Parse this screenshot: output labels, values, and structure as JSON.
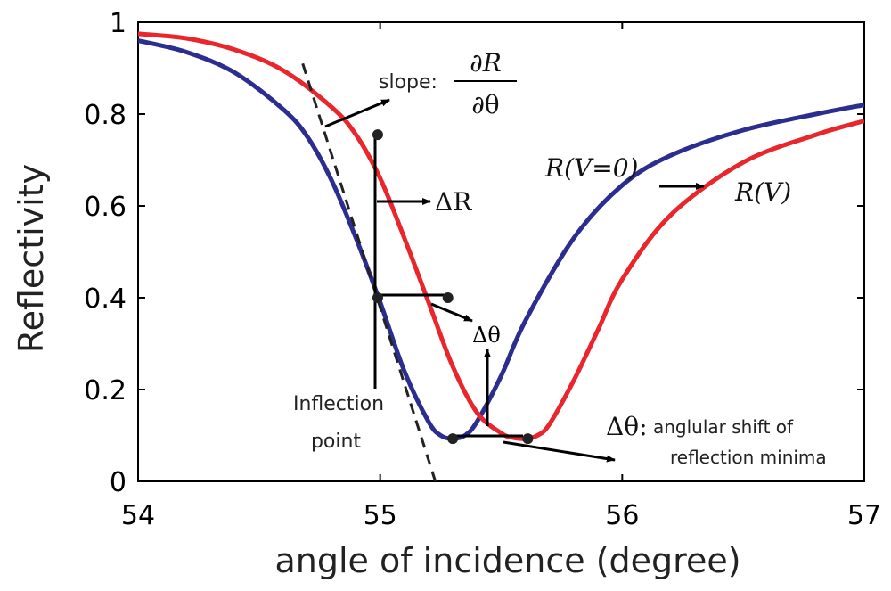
{
  "chart_data": {
    "type": "line",
    "title": "",
    "xlabel": "angle of incidence (degree)",
    "ylabel": "Reflectivity",
    "xlim": [
      54,
      57
    ],
    "ylim": [
      0,
      1
    ],
    "xticks": [
      54,
      55,
      56,
      57
    ],
    "xtick_labels": [
      "54",
      "55",
      "56",
      "57"
    ],
    "yticks": [
      0,
      0.2,
      0.4,
      0.6,
      0.8,
      1
    ],
    "ytick_labels": [
      "0",
      "0.2",
      "0.4",
      "0.6",
      "0.8",
      "1"
    ],
    "grid": false,
    "series": [
      {
        "name": "R(V=0)",
        "color": "#2b2d8f",
        "x": [
          54.0,
          54.2,
          54.4,
          54.6,
          54.7,
          54.8,
          54.9,
          55.0,
          55.1,
          55.2,
          55.25,
          55.3,
          55.35,
          55.4,
          55.5,
          55.6,
          55.8,
          56.0,
          56.2,
          56.5,
          56.8,
          57.0
        ],
        "y": [
          0.96,
          0.935,
          0.89,
          0.81,
          0.75,
          0.655,
          0.53,
          0.39,
          0.24,
          0.13,
          0.1,
          0.093,
          0.1,
          0.13,
          0.23,
          0.35,
          0.53,
          0.645,
          0.71,
          0.765,
          0.8,
          0.82
        ]
      },
      {
        "name": "R(V)",
        "color": "#e8262b",
        "x": [
          54.0,
          54.2,
          54.4,
          54.6,
          54.8,
          54.9,
          55.0,
          55.1,
          55.2,
          55.3,
          55.4,
          55.5,
          55.55,
          55.6,
          55.65,
          55.7,
          55.8,
          55.9,
          56.0,
          56.2,
          56.5,
          56.8,
          57.0
        ],
        "y": [
          0.975,
          0.965,
          0.94,
          0.895,
          0.815,
          0.755,
          0.66,
          0.53,
          0.39,
          0.25,
          0.15,
          0.105,
          0.095,
          0.093,
          0.1,
          0.125,
          0.22,
          0.33,
          0.44,
          0.58,
          0.695,
          0.755,
          0.785
        ]
      }
    ],
    "tangent_line": {
      "x": [
        54.68,
        55.24
      ],
      "y": [
        0.91,
        -0.02
      ]
    },
    "points": [
      {
        "name": "red-upper-point",
        "x": 54.99,
        "y": 0.755
      },
      {
        "name": "inflection-point",
        "x": 54.99,
        "y": 0.4
      },
      {
        "name": "red-same-level-point",
        "x": 55.28,
        "y": 0.4
      },
      {
        "name": "blue-minimum-point",
        "x": 55.3,
        "y": 0.093
      },
      {
        "name": "red-minimum-point",
        "x": 55.61,
        "y": 0.093
      }
    ],
    "annotations": {
      "slope_label": "slope:",
      "slope_numerator": "∂R",
      "slope_denominator": "∂θ",
      "delta_r": "ΔR",
      "delta_theta": "Δθ",
      "inflection_line1": "Inflection",
      "inflection_line2": "point",
      "shift_symbol": "Δθ:",
      "shift_line1": "anglular shift of",
      "shift_line2": "reflection minima",
      "curve_label_v0": "R(V=0)",
      "curve_label_v": "R(V)"
    }
  }
}
